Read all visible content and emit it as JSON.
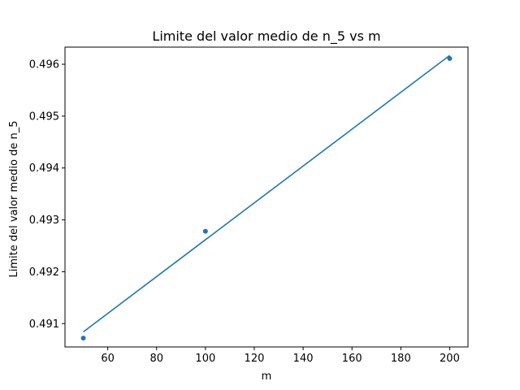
{
  "chart_data": {
    "type": "scatter",
    "title": "Limite del valor medio de n_5 vs m",
    "xlabel": "m",
    "ylabel": "Limite del valor medio de n_5",
    "xlim": [
      42.5,
      207.5
    ],
    "ylim": [
      0.49055,
      0.49633
    ],
    "x_ticks": [
      60,
      80,
      100,
      120,
      140,
      160,
      180,
      200
    ],
    "y_ticks": [
      0.491,
      0.492,
      0.493,
      0.494,
      0.495,
      0.496
    ],
    "grid": false,
    "series": [
      {
        "kind": "points",
        "color": "#1f77b4",
        "x": [
          50,
          100,
          200
        ],
        "y": [
          0.49072,
          0.49278,
          0.49611
        ]
      },
      {
        "kind": "line",
        "color": "#1f77b4",
        "x": [
          50,
          200
        ],
        "y": [
          0.49084,
          0.49617
        ]
      }
    ]
  }
}
